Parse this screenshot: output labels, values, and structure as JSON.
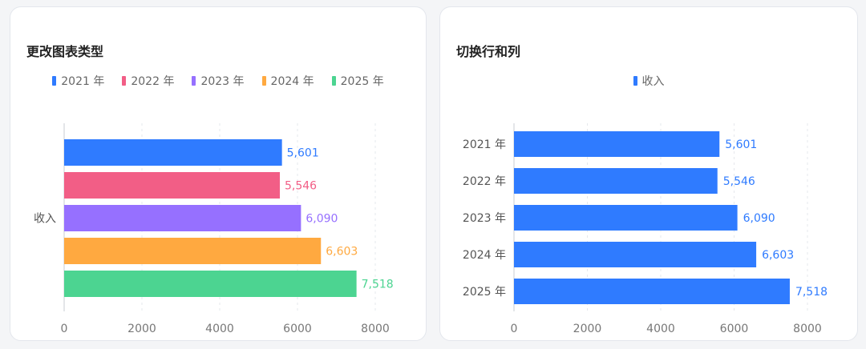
{
  "charts": {
    "left": {
      "title": "更改图表类型"
    },
    "right": {
      "title": "切换行和列"
    }
  },
  "chart_data": [
    {
      "type": "bar",
      "orientation": "horizontal",
      "title": "更改图表类型",
      "categories": [
        "收入"
      ],
      "series": [
        {
          "name": "2021 年",
          "values": [
            5601
          ],
          "labels": [
            "5,601"
          ],
          "color": "#2f7bff"
        },
        {
          "name": "2022 年",
          "values": [
            5546
          ],
          "labels": [
            "5,546"
          ],
          "color": "#f25e86"
        },
        {
          "name": "2023 年",
          "values": [
            6090
          ],
          "labels": [
            "6,090"
          ],
          "color": "#9670ff"
        },
        {
          "name": "2024 年",
          "values": [
            6603
          ],
          "labels": [
            "6,603"
          ],
          "color": "#ffa940"
        },
        {
          "name": "2025 年",
          "values": [
            7518
          ],
          "labels": [
            "7,518"
          ],
          "color": "#4cd491"
        }
      ],
      "xlim": [
        0,
        8000
      ],
      "xticks": [
        "0",
        "2000",
        "4000",
        "6000",
        "8000"
      ],
      "legend_position": "top",
      "grid": "vertical dashed"
    },
    {
      "type": "bar",
      "orientation": "horizontal",
      "title": "切换行和列",
      "categories": [
        "2021 年",
        "2022 年",
        "2023 年",
        "2024 年",
        "2025 年"
      ],
      "series": [
        {
          "name": "收入",
          "values": [
            5601,
            5546,
            6090,
            6603,
            7518
          ],
          "labels": [
            "5,601",
            "5,546",
            "6,090",
            "6,603",
            "7,518"
          ],
          "color": "#2f7bff"
        }
      ],
      "xlim": [
        0,
        8000
      ],
      "xticks": [
        "0",
        "2000",
        "4000",
        "6000",
        "8000"
      ],
      "legend_position": "top",
      "grid": "vertical dashed"
    }
  ]
}
